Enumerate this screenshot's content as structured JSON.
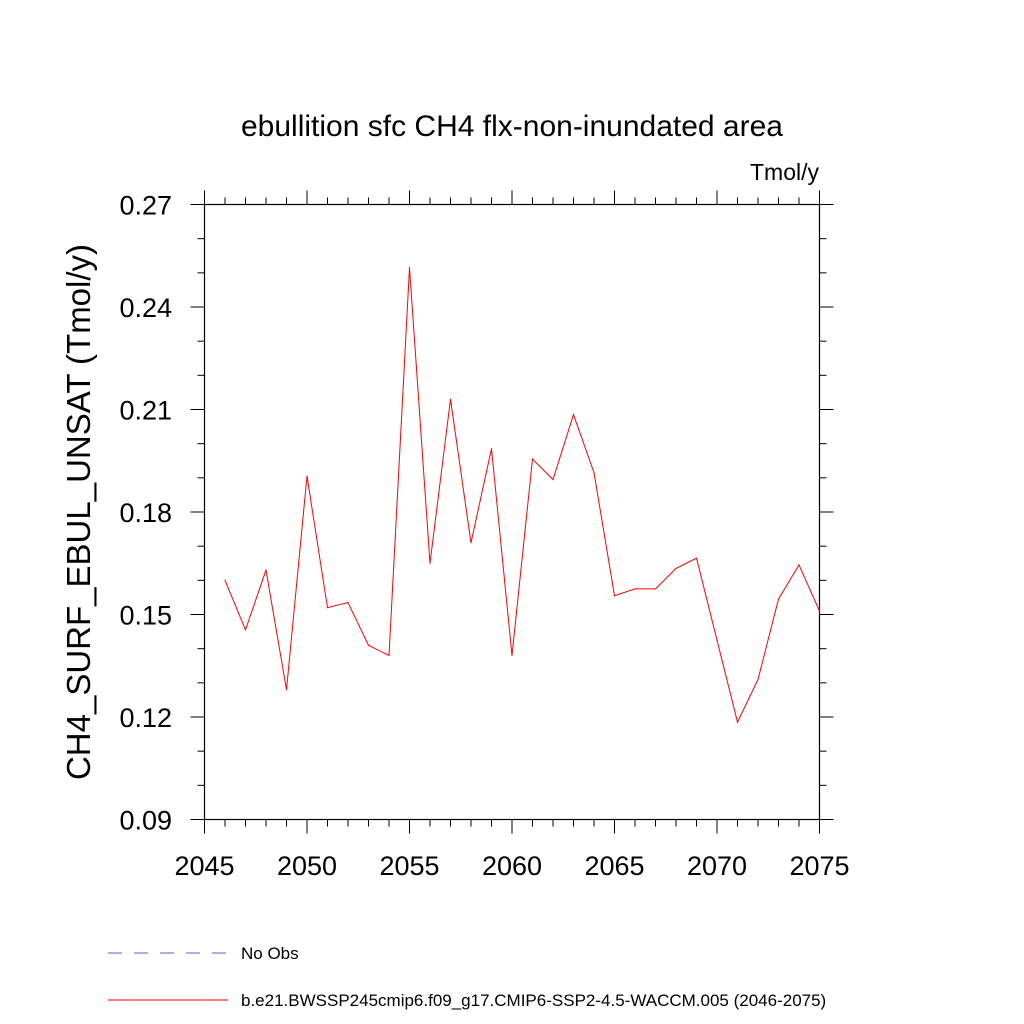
{
  "chart_data": {
    "type": "line",
    "title": "ebullition sfc CH4 flx-non-inundated area",
    "units_label": "Tmol/y",
    "xlabel": "",
    "ylabel": "CH4_SURF_EBUL_UNSAT  (Tmol/y)",
    "xlim": [
      2045,
      2075
    ],
    "ylim": [
      0.09,
      0.27
    ],
    "xticks": [
      "2045",
      "2050",
      "2055",
      "2060",
      "2065",
      "2070",
      "2075"
    ],
    "yticks": [
      "0.09",
      "0.12",
      "0.15",
      "0.18",
      "0.21",
      "0.24",
      "0.27"
    ],
    "series": [
      {
        "name": "b.e21.BWSSP245cmip6.f09_g17.CMIP6-SSP2-4.5-WACCM.005 (2046-2075)",
        "color": "#ff0000",
        "x": [
          2046,
          2047,
          2048,
          2049,
          2050,
          2051,
          2052,
          2053,
          2054,
          2055,
          2056,
          2057,
          2058,
          2059,
          2060,
          2061,
          2062,
          2063,
          2064,
          2065,
          2066,
          2067,
          2068,
          2069,
          2070,
          2071,
          2072,
          2073,
          2074,
          2075
        ],
        "values": [
          0.16,
          0.1455,
          0.163,
          0.128,
          0.1905,
          0.152,
          0.1535,
          0.141,
          0.138,
          0.2515,
          0.165,
          0.213,
          0.171,
          0.1985,
          0.138,
          0.1955,
          0.1895,
          0.2085,
          0.1915,
          0.1555,
          0.1575,
          0.1575,
          0.1635,
          0.1665,
          0.1425,
          0.1185,
          0.131,
          0.1545,
          0.1645,
          0.151
        ]
      }
    ],
    "legend": [
      {
        "label": "No Obs",
        "color": "#6a5acd",
        "style": "dashed"
      },
      {
        "label": "b.e21.BWSSP245cmip6.f09_g17.CMIP6-SSP2-4.5-WACCM.005 (2046-2075)",
        "color": "#ff0000",
        "style": "solid"
      }
    ]
  }
}
